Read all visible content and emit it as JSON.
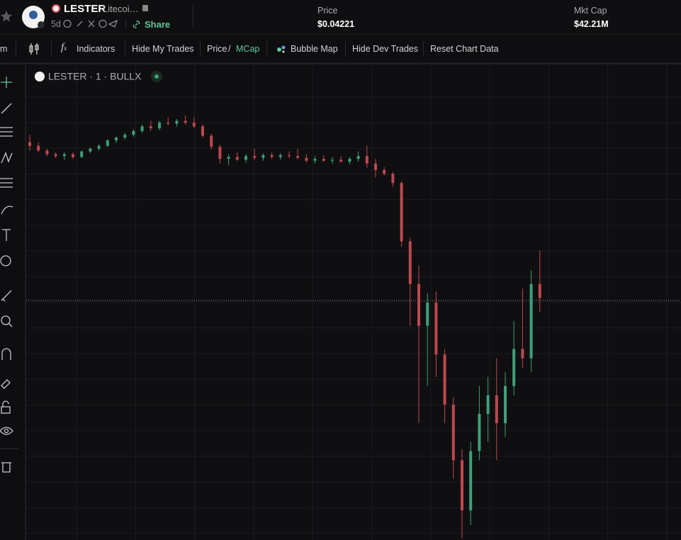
{
  "header": {
    "token": "LESTER",
    "name": "Litecoi…",
    "age": "5d",
    "share": "Share",
    "price_label": "Price",
    "price": "$0.04221",
    "mcap_label": "Mkt Cap",
    "mcap": "$42.21M"
  },
  "toolbar": {
    "interval": "m",
    "indicators": "Indicators",
    "hide_my_trades": "Hide My Trades",
    "price": "Price",
    "slash": "/",
    "mcap": "MCap",
    "bubble_map": "Bubble Map",
    "hide_dev_trades": "Hide Dev Trades",
    "reset": "Reset Chart Data"
  },
  "chart_data": {
    "type": "candlestick",
    "legend": "LESTER · 1 · BULLX",
    "up_color": "#3f9f7a",
    "down_color": "#c0474f",
    "ylim": [
      0.0164,
      0.0676
    ],
    "ohlc": [
      [
        0.0593,
        0.0601,
        0.0584,
        0.0589
      ],
      [
        0.0589,
        0.0593,
        0.0582,
        0.0584
      ],
      [
        0.0584,
        0.0586,
        0.0578,
        0.058
      ],
      [
        0.058,
        0.0582,
        0.0576,
        0.0578
      ],
      [
        0.0578,
        0.0582,
        0.0574,
        0.058
      ],
      [
        0.058,
        0.0582,
        0.0575,
        0.0577
      ],
      [
        0.0577,
        0.0584,
        0.0576,
        0.0583
      ],
      [
        0.0583,
        0.0587,
        0.0581,
        0.0586
      ],
      [
        0.0586,
        0.0591,
        0.0584,
        0.0589
      ],
      [
        0.0589,
        0.0596,
        0.0588,
        0.0595
      ],
      [
        0.0595,
        0.0599,
        0.0592,
        0.0598
      ],
      [
        0.0598,
        0.0603,
        0.0596,
        0.0601
      ],
      [
        0.0601,
        0.0607,
        0.0599,
        0.0605
      ],
      [
        0.0605,
        0.0612,
        0.0603,
        0.061
      ],
      [
        0.061,
        0.0616,
        0.0605,
        0.0608
      ],
      [
        0.0608,
        0.0616,
        0.0606,
        0.0614
      ],
      [
        0.0614,
        0.062,
        0.0611,
        0.0613
      ],
      [
        0.0613,
        0.0618,
        0.061,
        0.0616
      ],
      [
        0.0616,
        0.0622,
        0.0612,
        0.0614
      ],
      [
        0.0614,
        0.062,
        0.0608,
        0.061
      ],
      [
        0.061,
        0.0612,
        0.0598,
        0.06
      ],
      [
        0.06,
        0.0602,
        0.0585,
        0.0588
      ],
      [
        0.0588,
        0.059,
        0.057,
        0.0575
      ],
      [
        0.0575,
        0.058,
        0.0568,
        0.0577
      ],
      [
        0.0577,
        0.0582,
        0.0573,
        0.0574
      ],
      [
        0.0574,
        0.058,
        0.0571,
        0.0578
      ],
      [
        0.0578,
        0.0586,
        0.0574,
        0.0576
      ],
      [
        0.0576,
        0.0581,
        0.0573,
        0.0579
      ],
      [
        0.0579,
        0.0582,
        0.0575,
        0.0577
      ],
      [
        0.0577,
        0.0581,
        0.0574,
        0.0579
      ],
      [
        0.0579,
        0.0583,
        0.0576,
        0.0578
      ],
      [
        0.0578,
        0.0586,
        0.0575,
        0.0576
      ],
      [
        0.0576,
        0.058,
        0.0571,
        0.0573
      ],
      [
        0.0573,
        0.0578,
        0.057,
        0.0575
      ],
      [
        0.0575,
        0.0579,
        0.0572,
        0.0573
      ],
      [
        0.0573,
        0.0577,
        0.057,
        0.0574
      ],
      [
        0.0574,
        0.0578,
        0.0571,
        0.0572
      ],
      [
        0.0572,
        0.0577,
        0.0569,
        0.0575
      ],
      [
        0.0575,
        0.0583,
        0.0572,
        0.0578
      ],
      [
        0.0578,
        0.0589,
        0.0565,
        0.057
      ],
      [
        0.057,
        0.0575,
        0.0555,
        0.0563
      ],
      [
        0.0563,
        0.0566,
        0.0557,
        0.0559
      ],
      [
        0.0559,
        0.0561,
        0.0545,
        0.0549
      ],
      [
        0.0549,
        0.0551,
        0.048,
        0.0486
      ],
      [
        0.0486,
        0.049,
        0.0395,
        0.044
      ],
      [
        0.044,
        0.046,
        0.029,
        0.0395
      ],
      [
        0.0395,
        0.043,
        0.033,
        0.042
      ],
      [
        0.042,
        0.0432,
        0.034,
        0.0364
      ],
      [
        0.0364,
        0.037,
        0.029,
        0.031
      ],
      [
        0.031,
        0.0318,
        0.023,
        0.025
      ],
      [
        0.025,
        0.0262,
        0.0166,
        0.0196
      ],
      [
        0.0196,
        0.027,
        0.018,
        0.026
      ],
      [
        0.026,
        0.033,
        0.025,
        0.03
      ],
      [
        0.03,
        0.034,
        0.027,
        0.032
      ],
      [
        0.032,
        0.036,
        0.025,
        0.029
      ],
      [
        0.029,
        0.0345,
        0.0275,
        0.033
      ],
      [
        0.033,
        0.04,
        0.032,
        0.037
      ],
      [
        0.037,
        0.0435,
        0.035,
        0.036
      ],
      [
        0.036,
        0.0455,
        0.0345,
        0.044
      ],
      [
        0.044,
        0.0476,
        0.041,
        0.0425
      ]
    ]
  }
}
